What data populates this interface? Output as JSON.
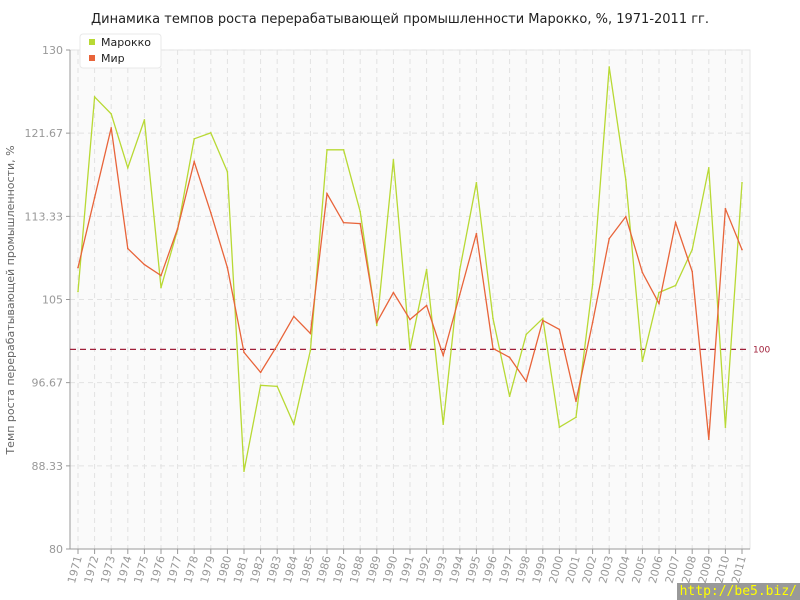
{
  "chart_data": {
    "type": "line",
    "title": "Динамика темпов роста перерабатывающей промышленности Марокко, %, 1971-2011 гг.",
    "xlabel": "",
    "ylabel": "Темп роста перерабатывающей промышленности, %",
    "ylim": [
      80,
      130
    ],
    "yticks": [
      "80",
      "88.33",
      "96.67",
      "105",
      "113.33",
      "121.67",
      "130"
    ],
    "x": [
      1971,
      1972,
      1973,
      1974,
      1975,
      1976,
      1977,
      1978,
      1979,
      1980,
      1981,
      1982,
      1983,
      1984,
      1985,
      1986,
      1987,
      1988,
      1989,
      1990,
      1991,
      1992,
      1993,
      1994,
      1995,
      1996,
      1997,
      1998,
      1999,
      2000,
      2001,
      2002,
      2003,
      2004,
      2005,
      2006,
      2007,
      2008,
      2009,
      2010,
      2011
    ],
    "grid": true,
    "legend": "top-left",
    "reference_line": {
      "value": 100,
      "label": "100",
      "color": "#a0203a"
    },
    "series": [
      {
        "name": "Марокко",
        "color": "#b8d934",
        "values": [
          105.8,
          125.3,
          123.6,
          118.2,
          123.0,
          106.2,
          112.0,
          121.1,
          121.7,
          117.8,
          87.8,
          96.4,
          96.3,
          92.5,
          99.9,
          120.0,
          120.0,
          113.8,
          102.4,
          119.0,
          100.0,
          108.0,
          92.5,
          108.0,
          116.7,
          103.1,
          95.3,
          101.5,
          103.1,
          92.2,
          93.2,
          106.5,
          128.3,
          117.0,
          98.8,
          105.7,
          106.4,
          110.0,
          118.2,
          92.2,
          116.7
        ]
      },
      {
        "name": "Мир",
        "color": "#e8643a",
        "values": [
          108.2,
          115.2,
          122.2,
          110.1,
          108.5,
          107.4,
          112.1,
          118.8,
          113.7,
          108.2,
          99.7,
          97.7,
          100.4,
          103.3,
          101.6,
          115.6,
          112.7,
          112.6,
          102.7,
          105.7,
          103.0,
          104.4,
          99.4,
          105.5,
          111.6,
          100.1,
          99.2,
          96.8,
          102.9,
          102.0,
          94.8,
          102.7,
          111.1,
          113.3,
          107.7,
          104.6,
          112.7,
          107.8,
          91.0,
          114.1,
          110.0
        ]
      }
    ]
  },
  "watermark": "http://be5.biz/"
}
